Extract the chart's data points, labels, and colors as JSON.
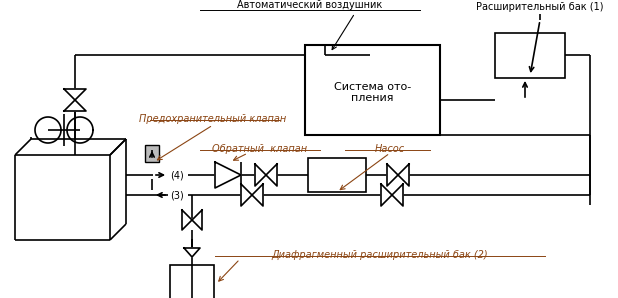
{
  "bg_color": "#ffffff",
  "line_color": "#000000",
  "text_color": "#000000",
  "label_color": "#8B4513",
  "figsize": [
    6.18,
    2.98
  ],
  "dpi": 100,
  "labels": {
    "auto_air": "Автоматический воздушник",
    "expansion_tank": "Расширительный бак (1)",
    "heating_system_1": "Система ото-",
    "heating_system_2": "пления",
    "safety_valve": "Предохранительный клапан",
    "check_valve": "Обратный  клапан",
    "pump": "Насос",
    "membrane_tank": "Диафрагменный расширительный бак (2)",
    "port4": "(4)",
    "port3": "(3)"
  }
}
